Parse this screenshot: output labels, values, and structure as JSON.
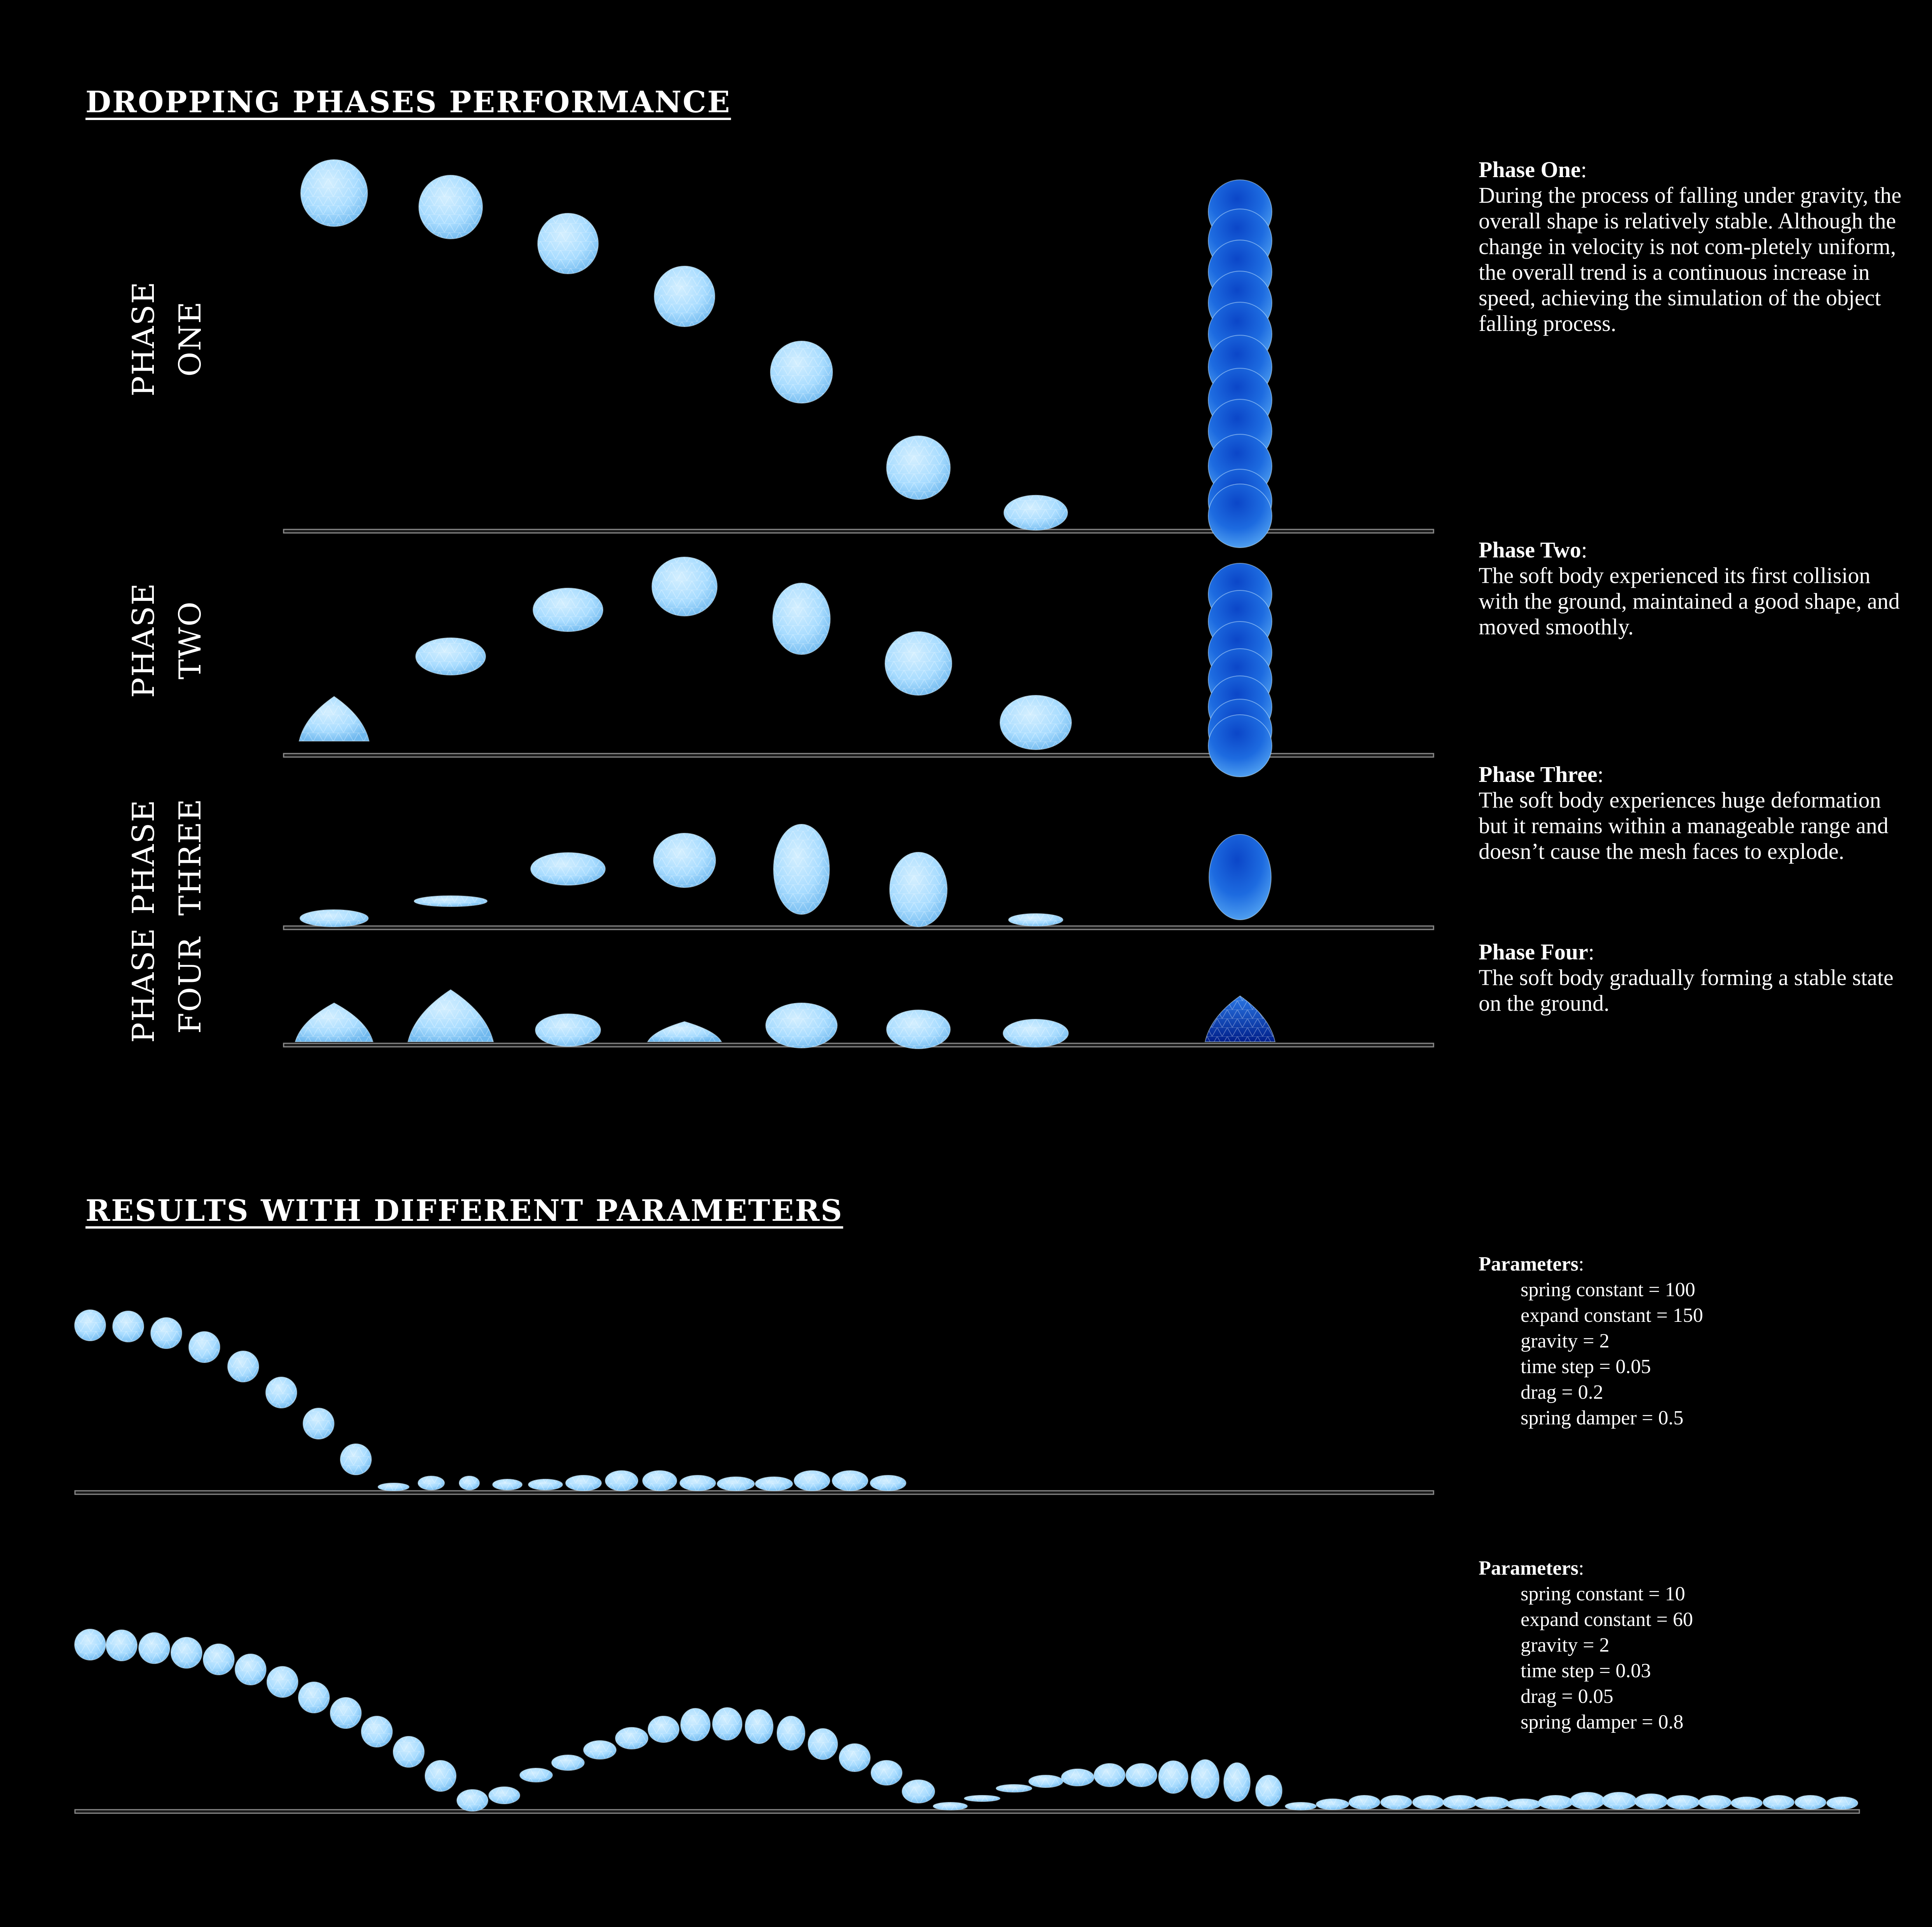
{
  "section1": {
    "heading": "DROPPING PHASES PERFORMANCE"
  },
  "phases": [
    {
      "row_label_1": "PHASE",
      "row_label_2": "ONE",
      "title": "Phase One",
      "colon": ":",
      "description": "During the process of falling under gravity, the overall shape is relatively stable. Although the change in velocity is not com-pletely uniform, the overall trend is a continuous increase in speed, achieving the simulation of the object falling process."
    },
    {
      "row_label_1": "PHASE",
      "row_label_2": "TWO",
      "title": "Phase Two",
      "colon": ":",
      "description": "The soft body experienced its first collision with the ground, maintained a good shape, and moved smoothly."
    },
    {
      "row_label_1": "PHASE",
      "row_label_2": "THREE",
      "title": "Phase Three",
      "colon": ":",
      "description": "The soft body experiences huge deformation but it remains within a manageable range and doesn’t cause the mesh faces to explode."
    },
    {
      "row_label_1": "PHASE",
      "row_label_2": "FOUR",
      "title": "Phase Four",
      "colon": ":",
      "description": "The soft body gradually forming a stable state on the ground."
    }
  ],
  "section2": {
    "heading": "RESULTS WITH DIFFERENT PARAMETERS"
  },
  "parameter_sets": [
    {
      "title": "Parameters",
      "colon": ":",
      "items": [
        "spring constant = 100",
        "expand constant = 150",
        "gravity = 2",
        "time step = 0.05",
        "drag = 0.2",
        "spring damper = 0.5"
      ]
    },
    {
      "title": "Parameters",
      "colon": ":",
      "items": [
        "spring constant = 10",
        "expand constant = 60",
        "gravity = 2",
        "time step = 0.03",
        "drag = 0.05",
        "spring damper = 0.8"
      ]
    }
  ],
  "colors": {
    "background": "#000000",
    "text": "#ffffff",
    "body_light": "#aee0ff",
    "body_mid": "#66b8f5",
    "body_dark": "#0a3fb8",
    "ground": "#8a8a8a"
  }
}
